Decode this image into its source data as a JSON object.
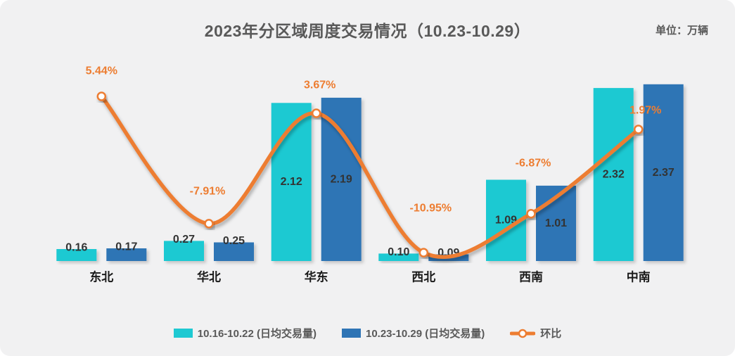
{
  "header": {
    "title": "2023年分区域周度交易情况（10.23-10.29）",
    "unit_label": "单位：万辆"
  },
  "chart_data": {
    "type": "bar+line",
    "title": "2023年分区域周度交易情况（10.23-10.29）",
    "unit": "万辆",
    "categories": [
      "东北",
      "华北",
      "华东",
      "西北",
      "西南",
      "中南"
    ],
    "series": [
      {
        "name": "10.16-10.22 (日均交易量)",
        "type": "bar",
        "color": "#1EC9D2",
        "values": [
          0.16,
          0.27,
          2.12,
          0.1,
          1.09,
          2.32
        ],
        "labels": [
          "0.16",
          "0.27",
          "2.12",
          "0.10",
          "1.09",
          "2.32"
        ]
      },
      {
        "name": "10.23-10.29 (日均交易量)",
        "type": "bar",
        "color": "#2E74B5",
        "values": [
          0.17,
          0.25,
          2.19,
          0.09,
          1.01,
          2.37
        ],
        "labels": [
          "0.17",
          "0.25",
          "2.19",
          "0.09",
          "1.01",
          "2.37"
        ]
      },
      {
        "name": "环比",
        "type": "line",
        "color": "#ED7D31",
        "marker": "circle",
        "values": [
          5.44,
          -7.91,
          3.67,
          -10.95,
          -6.87,
          1.97
        ],
        "labels": [
          "5.44%",
          "-7.91%",
          "3.67%",
          "-10.95%",
          "-6.87%",
          "1.97%"
        ]
      }
    ],
    "value_axis_hidden": true,
    "grid": false,
    "legend_position": "bottom",
    "colors": {
      "background": "#f1f1f2",
      "title_text": "#595959",
      "axis_line": "#6e6e6e",
      "bar_label_text": "#333333",
      "category_label_text": "#1a1a1a",
      "pct_label_text": "#ED7D31"
    }
  }
}
